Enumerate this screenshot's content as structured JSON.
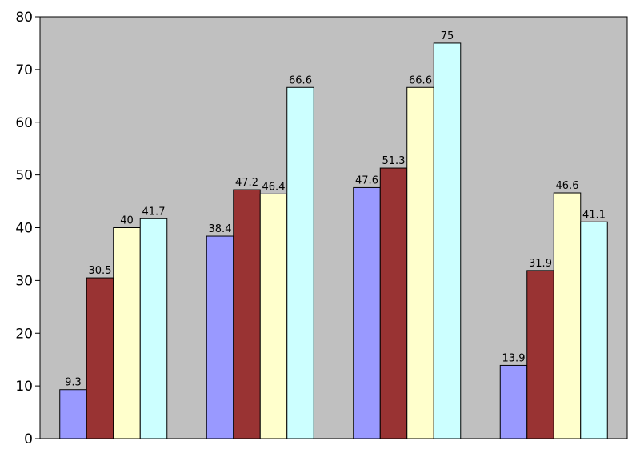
{
  "chart_data": {
    "type": "bar",
    "title": "",
    "xlabel": "",
    "ylabel": "",
    "ylim": [
      0,
      80
    ],
    "yticks": [
      0,
      10,
      20,
      30,
      40,
      50,
      60,
      70,
      80
    ],
    "grid": false,
    "legend": "none",
    "categories": [
      "",
      "",
      "",
      ""
    ],
    "plot_background": "#c0c0c0",
    "series": [
      {
        "color": "#9999ff",
        "values": [
          9.3,
          38.4,
          47.6,
          13.9
        ]
      },
      {
        "color": "#993333",
        "values": [
          30.5,
          47.2,
          51.3,
          31.9
        ]
      },
      {
        "color": "#ffffcc",
        "values": [
          40,
          46.4,
          66.6,
          46.6
        ]
      },
      {
        "color": "#ccffff",
        "values": [
          41.7,
          66.6,
          75,
          41.1
        ]
      }
    ]
  }
}
